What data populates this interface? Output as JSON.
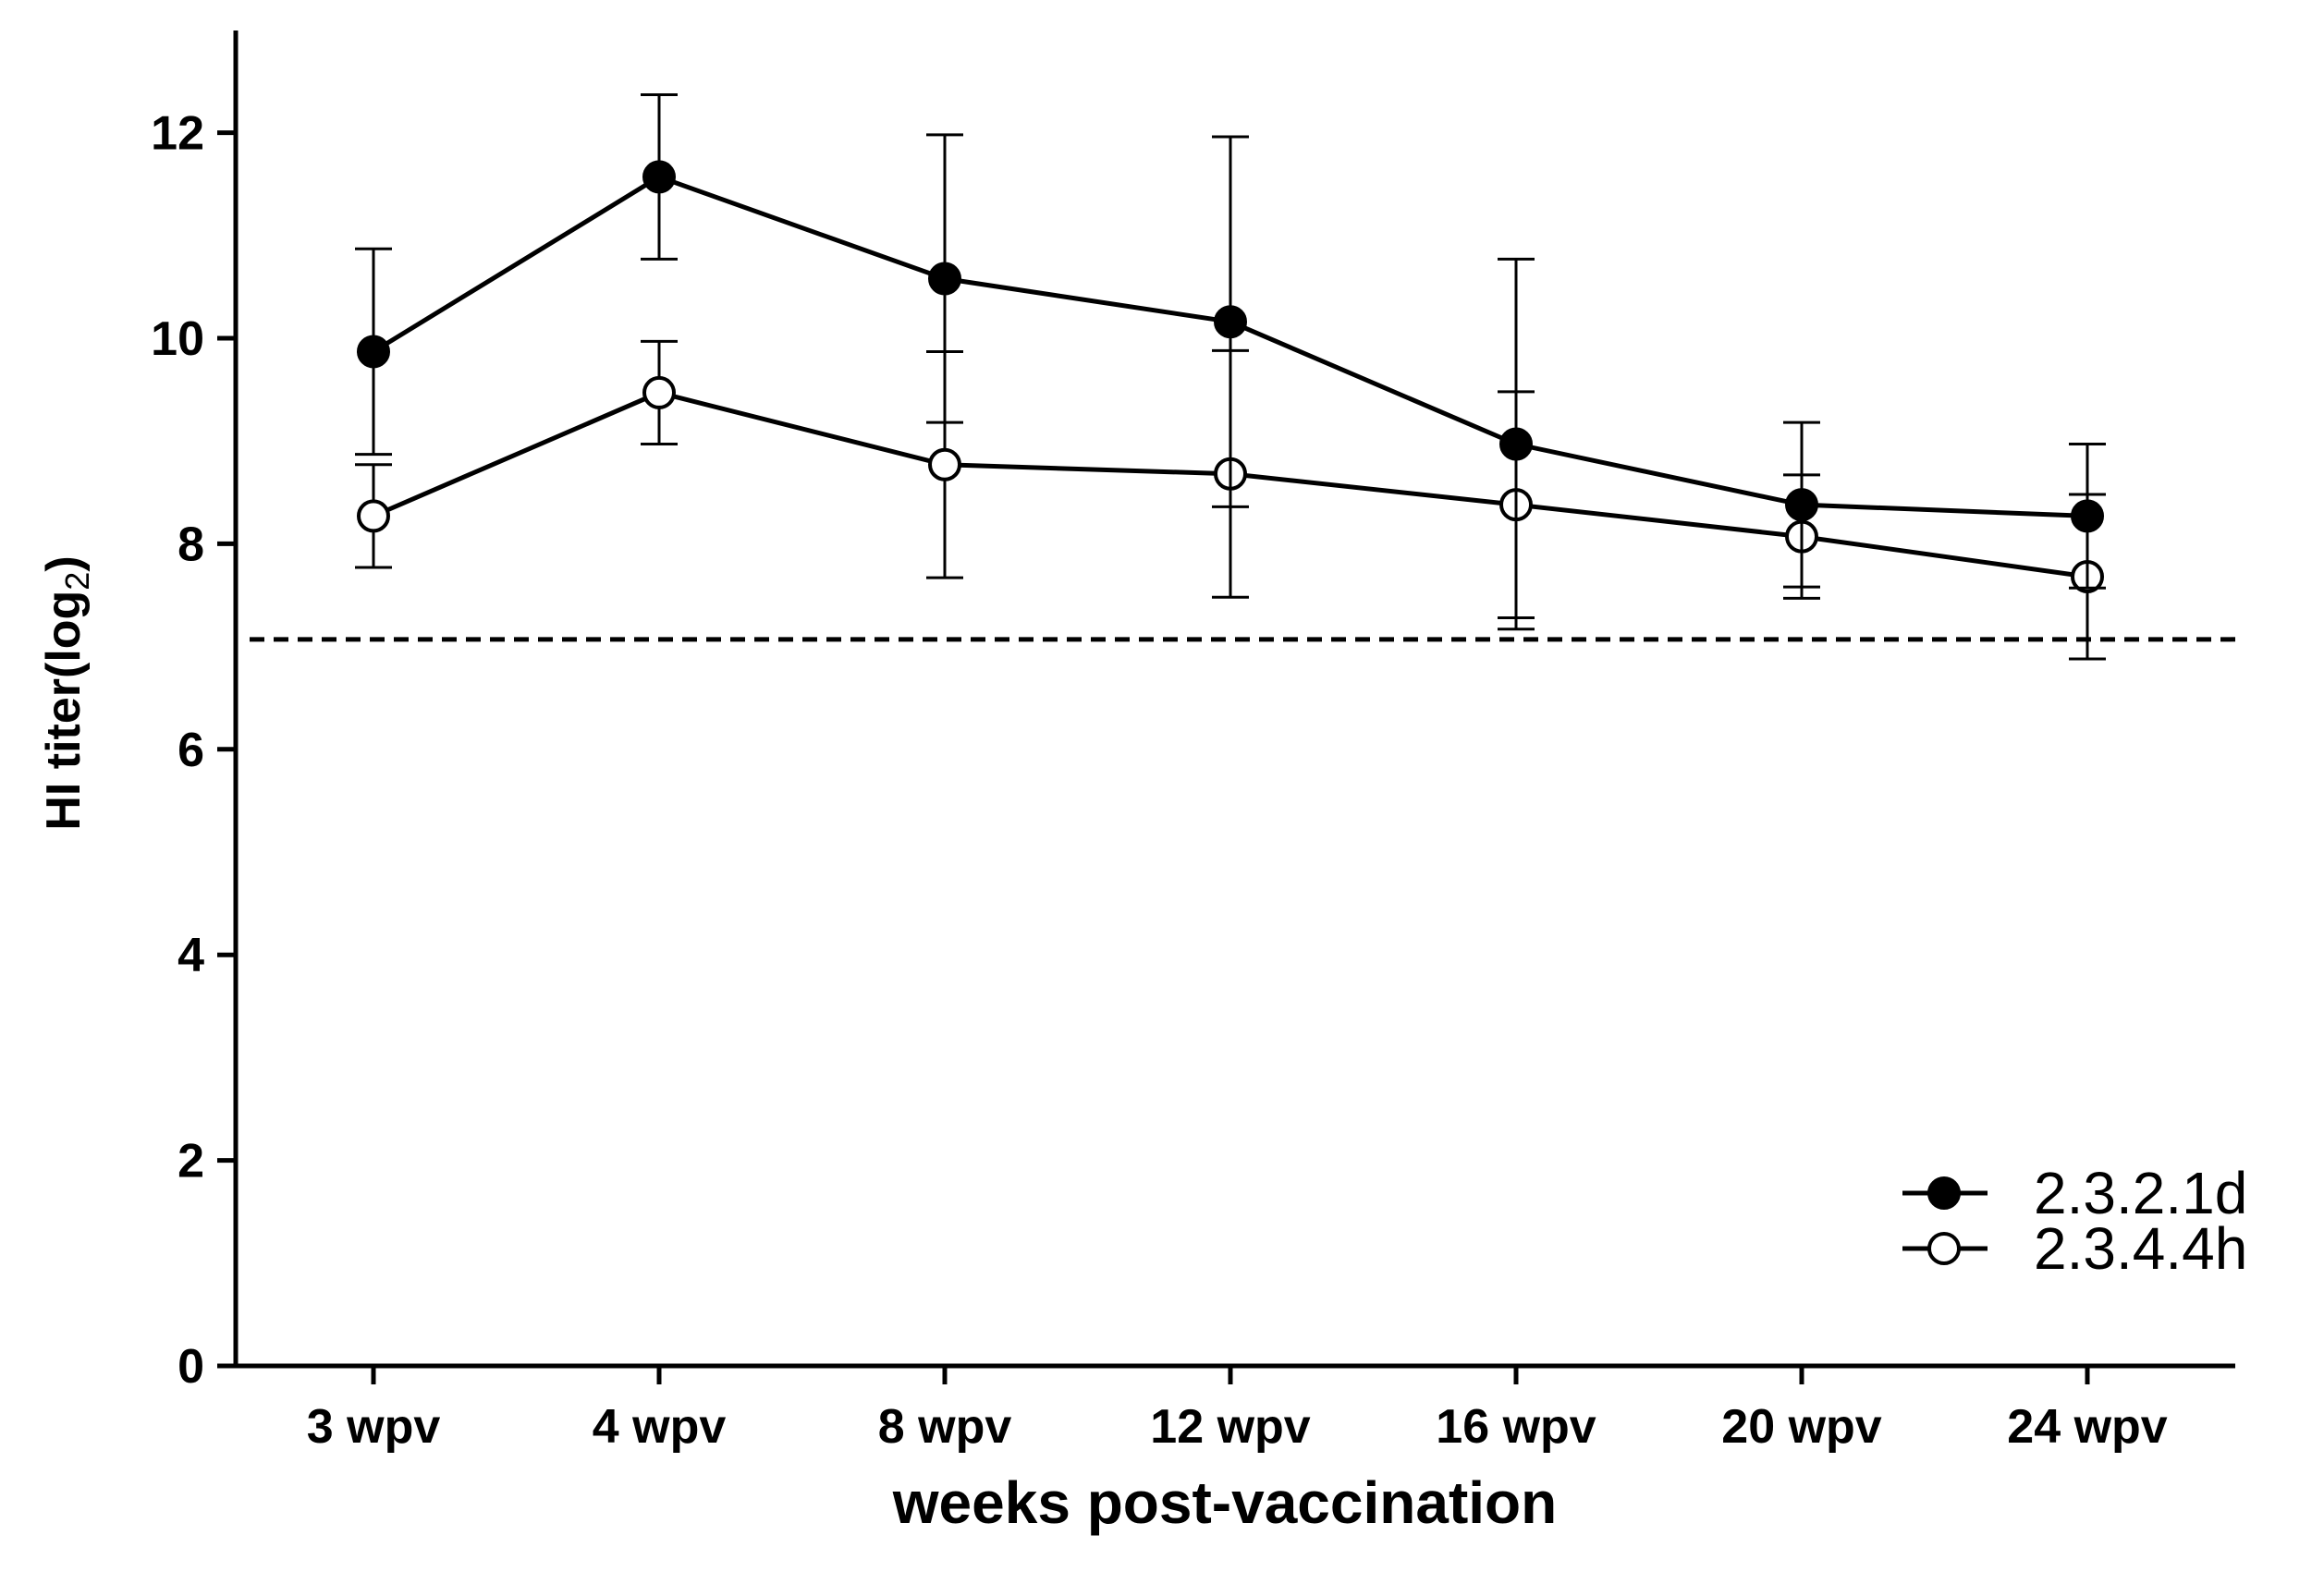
{
  "chart_data": {
    "type": "line",
    "title": "",
    "xlabel": "weeks post-vaccination",
    "ylabel": "HI titer(log",
    "ylabel_subscript": "2",
    "ylabel_close": ")",
    "categories": [
      "3 wpv",
      "4 wpv",
      "8 wpv",
      "12 wpv",
      "16 wpv",
      "20 wpv",
      "24 wpv"
    ],
    "ylim": [
      0,
      13
    ],
    "yticks": [
      0,
      2,
      4,
      6,
      8,
      10,
      12
    ],
    "ytick_labels": [
      "0",
      "2",
      "4",
      "6",
      "8",
      "10",
      "12"
    ],
    "grid": false,
    "legend_position": "bottom-right",
    "reference_line": {
      "y": 7.07,
      "style": "dashed"
    },
    "series": [
      {
        "name": "2.3.2.1d",
        "marker": "filled-circle",
        "values": [
          9.87,
          11.57,
          10.58,
          10.16,
          8.97,
          8.38,
          8.27
        ],
        "errors": [
          1.0,
          0.8,
          1.4,
          1.8,
          1.8,
          0.8,
          0.7
        ]
      },
      {
        "name": "2.3.4.4h",
        "marker": "open-circle",
        "values": [
          8.27,
          9.47,
          8.77,
          8.68,
          8.38,
          8.07,
          7.68
        ],
        "errors": [
          0.5,
          0.5,
          1.1,
          1.2,
          1.1,
          0.6,
          0.8
        ]
      }
    ]
  }
}
